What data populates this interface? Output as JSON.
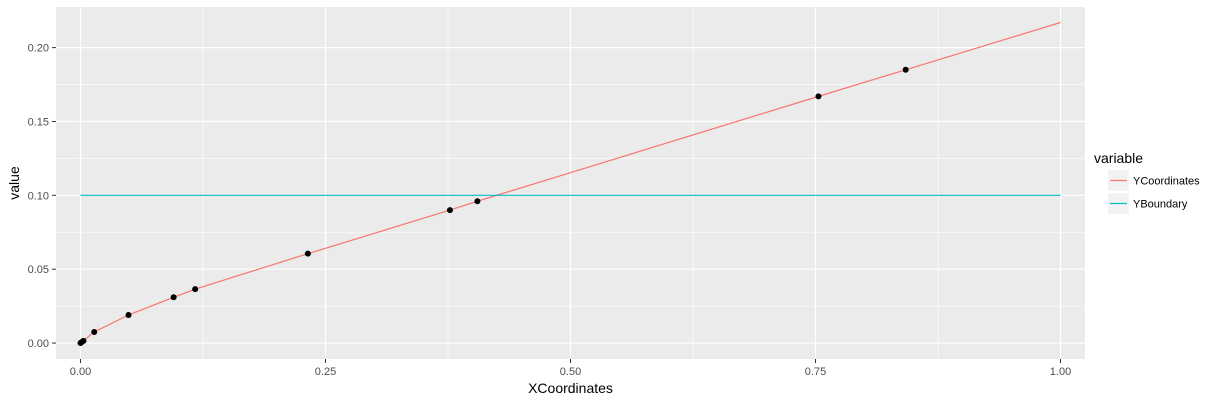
{
  "chart_data": {
    "type": "line",
    "xlabel": "XCoordinates",
    "ylabel": "value",
    "xlim": [
      -0.025,
      1.025
    ],
    "ylim": [
      -0.0108,
      0.2275
    ],
    "x_ticks": [
      0.0,
      0.25,
      0.5,
      0.75,
      1.0
    ],
    "x_tick_labels": [
      "0.00",
      "0.25",
      "0.50",
      "0.75",
      "1.00"
    ],
    "y_ticks": [
      0.0,
      0.05,
      0.1,
      0.15,
      0.2
    ],
    "y_tick_labels": [
      "0.00",
      "0.05",
      "0.10",
      "0.15",
      "0.20"
    ],
    "grid": true,
    "legend": {
      "title": "variable",
      "position": "right"
    },
    "series": [
      {
        "name": "YCoordinates",
        "color": "#f8766d",
        "x": [
          0.0,
          0.001,
          0.003,
          0.014,
          0.049,
          0.095,
          0.117,
          0.232,
          0.377,
          0.405,
          0.753,
          0.842,
          1.0
        ],
        "values": [
          0.0,
          0.0005,
          0.0015,
          0.0075,
          0.019,
          0.031,
          0.0365,
          0.0605,
          0.09,
          0.096,
          0.167,
          0.185,
          0.217
        ]
      },
      {
        "name": "YBoundary",
        "color": "#00bfc4",
        "x": [
          0.0,
          1.0
        ],
        "values": [
          0.1,
          0.1
        ]
      }
    ],
    "points": {
      "color": "#000000",
      "x": [
        0.0,
        0.001,
        0.003,
        0.014,
        0.049,
        0.095,
        0.117,
        0.232,
        0.377,
        0.405,
        0.753,
        0.842
      ],
      "values": [
        0.0,
        0.0005,
        0.0015,
        0.0075,
        0.019,
        0.031,
        0.0365,
        0.0605,
        0.09,
        0.096,
        0.167,
        0.185
      ]
    }
  }
}
